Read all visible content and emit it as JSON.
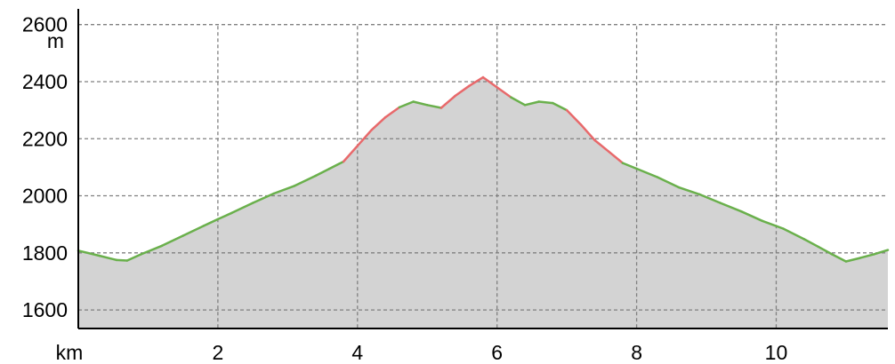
{
  "chart_data": {
    "type": "area",
    "title": "",
    "xlabel": "km",
    "ylabel": "m",
    "xlim": [
      0,
      11.6
    ],
    "ylim": [
      1535,
      2655
    ],
    "x_ticks": [
      2,
      4,
      6,
      8,
      10
    ],
    "y_ticks": [
      1600,
      1800,
      2000,
      2200,
      2400,
      2600
    ],
    "grid": true,
    "fill_color": "#d3d3d3",
    "ascent_color": "#6ab04c",
    "steep_color": "#e8696b",
    "grid_color": "#808080",
    "series": [
      {
        "x": [
          0,
          0.3,
          0.55,
          0.7,
          0.9,
          1.2,
          1.5,
          1.8,
          2.0,
          2.2,
          2.5,
          2.8,
          3.1,
          3.4,
          3.6,
          3.8,
          4.0,
          4.2,
          4.4,
          4.6,
          4.8,
          5.0,
          5.2,
          5.4,
          5.6,
          5.8,
          6.0,
          6.2,
          6.4,
          6.6,
          6.8,
          7.0,
          7.2,
          7.4,
          7.6,
          7.8,
          8.0,
          8.3,
          8.6,
          8.9,
          9.2,
          9.5,
          9.8,
          10.1,
          10.4,
          10.6,
          10.8,
          11.0,
          11.2,
          11.4,
          11.6
        ],
        "y": [
          1808,
          1790,
          1775,
          1773,
          1795,
          1825,
          1860,
          1895,
          1918,
          1940,
          1975,
          2008,
          2035,
          2070,
          2095,
          2120,
          2175,
          2230,
          2275,
          2310,
          2330,
          2318,
          2308,
          2350,
          2385,
          2415,
          2380,
          2345,
          2318,
          2330,
          2325,
          2300,
          2250,
          2195,
          2155,
          2115,
          2095,
          2065,
          2030,
          2005,
          1975,
          1945,
          1912,
          1885,
          1848,
          1822,
          1795,
          1770,
          1782,
          1795,
          1810
        ]
      }
    ]
  }
}
